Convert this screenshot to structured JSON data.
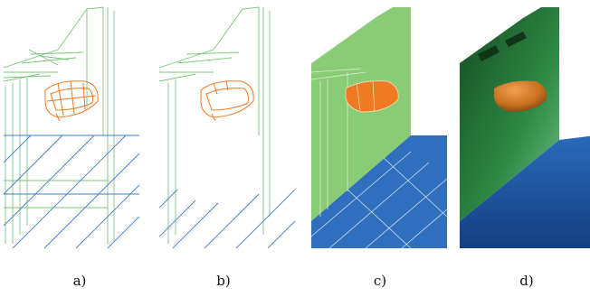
{
  "figure": {
    "panels": [
      {
        "caption": "a)",
        "render_style": "wireframe",
        "wall_color": "#7cc47a",
        "floor_color": "#3e7cc4",
        "object_color": "#f07a22"
      },
      {
        "caption": "b)",
        "render_style": "wireframe-hidden-lines-removed",
        "wall_color": "#7cc47a",
        "floor_color": "#3e7cc4",
        "object_color": "#f07a22"
      },
      {
        "caption": "c)",
        "render_style": "flat-shaded-with-edges",
        "wall_color": "#8acb76",
        "floor_color": "#2f6fbd",
        "object_color": "#f07a22"
      },
      {
        "caption": "d)",
        "render_style": "smooth-shaded",
        "wall_color": "#2e8a45",
        "floor_color": "#1f5aa6",
        "object_color": "#c8701e"
      }
    ]
  }
}
